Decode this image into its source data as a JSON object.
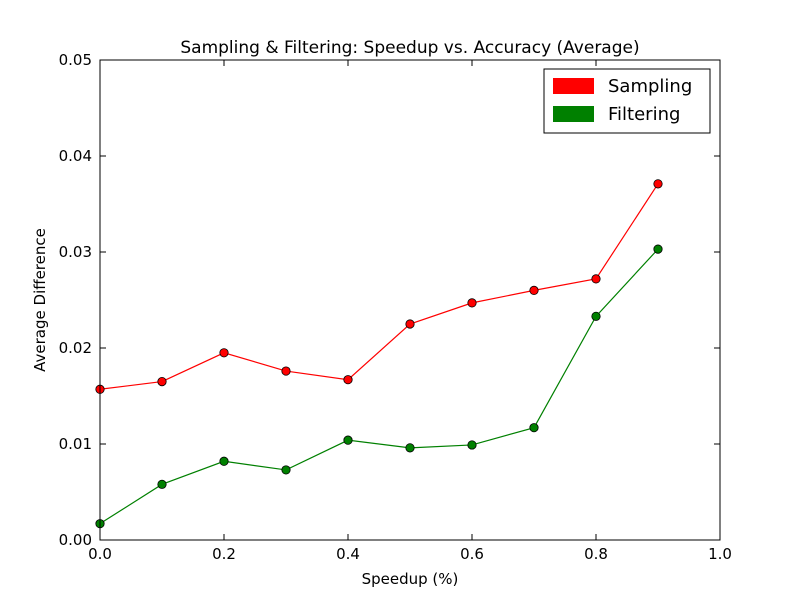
{
  "chart_data": {
    "type": "line",
    "title": "Sampling & Filtering: Speedup vs. Accuracy (Average)",
    "xlabel": "Speedup (%)",
    "ylabel": "Average Difference",
    "xlim": [
      0.0,
      1.0
    ],
    "ylim": [
      0.0,
      0.05
    ],
    "x_ticks": [
      "0.0",
      "0.2",
      "0.4",
      "0.6",
      "0.8",
      "1.0"
    ],
    "y_ticks": [
      "0.00",
      "0.01",
      "0.02",
      "0.03",
      "0.04",
      "0.05"
    ],
    "x_tick_values": [
      0.0,
      0.2,
      0.4,
      0.6,
      0.8,
      1.0
    ],
    "y_tick_values": [
      0.0,
      0.01,
      0.02,
      0.03,
      0.04,
      0.05
    ],
    "grid": false,
    "legend": "top-right",
    "x": [
      0.0,
      0.1,
      0.2,
      0.3,
      0.4,
      0.5,
      0.6,
      0.7,
      0.8,
      0.9
    ],
    "series": [
      {
        "name": "Sampling",
        "color": "#ff0000",
        "values": [
          0.0157,
          0.0165,
          0.0195,
          0.0176,
          0.0167,
          0.0225,
          0.0247,
          0.026,
          0.0272,
          0.0371
        ]
      },
      {
        "name": "Filtering",
        "color": "#008000",
        "values": [
          0.0017,
          0.0058,
          0.0082,
          0.0073,
          0.0104,
          0.0096,
          0.0099,
          0.0117,
          0.0233,
          0.0303
        ]
      }
    ]
  }
}
